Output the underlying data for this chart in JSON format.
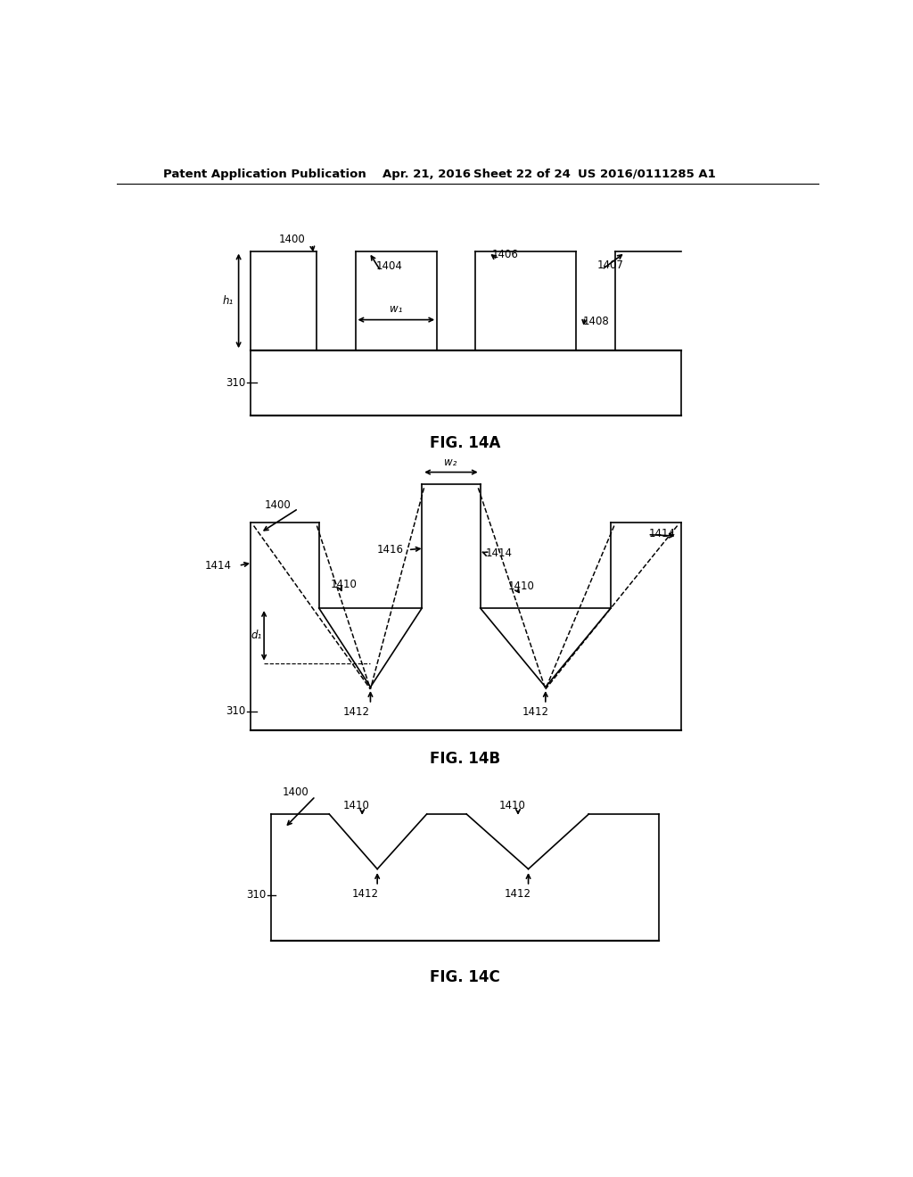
{
  "bg_color": "#ffffff",
  "line_color": "#000000",
  "lw": 1.2,
  "header": {
    "left": "Patent Application Publication",
    "mid1": "Apr. 21, 2016",
    "mid2": "Sheet 22 of 24",
    "right": "US 2016/0111285 A1"
  }
}
